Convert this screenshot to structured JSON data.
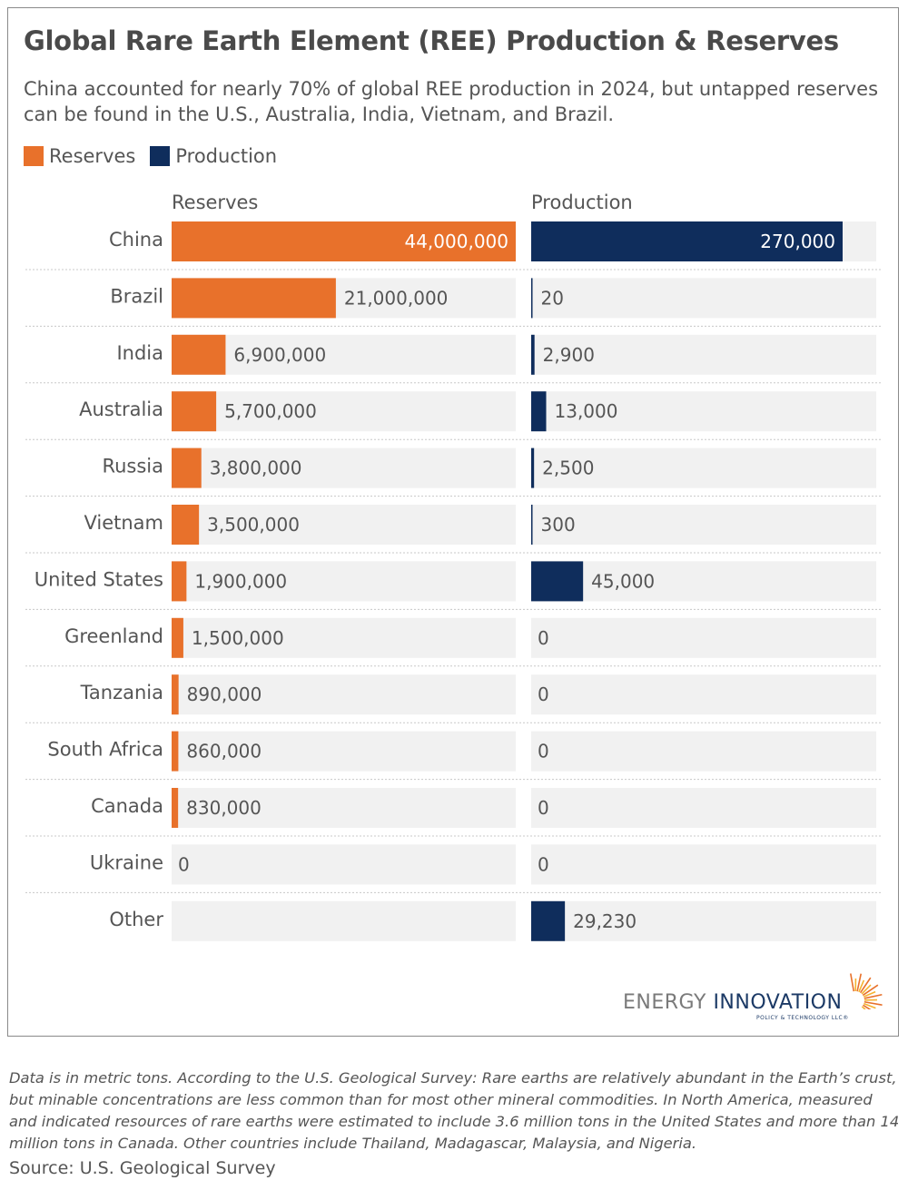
{
  "title": "Global Rare Earth Element (REE) Production & Reserves",
  "subtitle": "China accounted for nearly 70% of global REE production in 2024, but untapped reserves can be found in the U.S., Australia, India, Vietnam, and Brazil.",
  "legend": [
    {
      "label": "Reserves",
      "color": "#e8712b"
    },
    {
      "label": "Production",
      "color": "#0f2d5c"
    }
  ],
  "chart_data": {
    "type": "bar",
    "orientation": "horizontal",
    "categories": [
      "China",
      "Brazil",
      "India",
      "Australia",
      "Russia",
      "Vietnam",
      "United States",
      "Greenland",
      "Tanzania",
      "South Africa",
      "Canada",
      "Ukraine",
      "Other"
    ],
    "series": [
      {
        "name": "Reserves",
        "color": "#e8712b",
        "values": [
          44000000,
          21000000,
          6900000,
          5700000,
          3800000,
          3500000,
          1900000,
          1500000,
          890000,
          860000,
          830000,
          0,
          null
        ],
        "labels": [
          "44,000,000",
          "21,000,000",
          "6,900,000",
          "5,700,000",
          "3,800,000",
          "3,500,000",
          "1,900,000",
          "1,500,000",
          "890,000",
          "860,000",
          "830,000",
          "0",
          ""
        ]
      },
      {
        "name": "Production",
        "color": "#0f2d5c",
        "values": [
          270000,
          20,
          2900,
          13000,
          2500,
          300,
          45000,
          0,
          0,
          0,
          0,
          0,
          29230
        ],
        "labels": [
          "270,000",
          "20",
          "2,900",
          "13,000",
          "2,500",
          "300",
          "45,000",
          "0",
          "0",
          "0",
          "0",
          "0",
          "29,230"
        ]
      }
    ],
    "legend_position": "top-left"
  },
  "logo": {
    "word1": "ENERGY",
    "word2": "INNOVATION",
    "tagline": "POLICY & TECHNOLOGY LLC®"
  },
  "footnote": "Data is in metric tons. According to the U.S. Geological Survey: Rare earths are relatively abundant in the Earth’s crust, but minable concentrations are less common than for most other mineral commodities. In North America, measured and indicated resources of rare earths were estimated to include 3.6 million tons in the United States and more than 14 million tons in Canada. Other countries include Thailand, Madagascar, Malaysia, and Nigeria.",
  "source": "Source: U.S. Geological Survey"
}
